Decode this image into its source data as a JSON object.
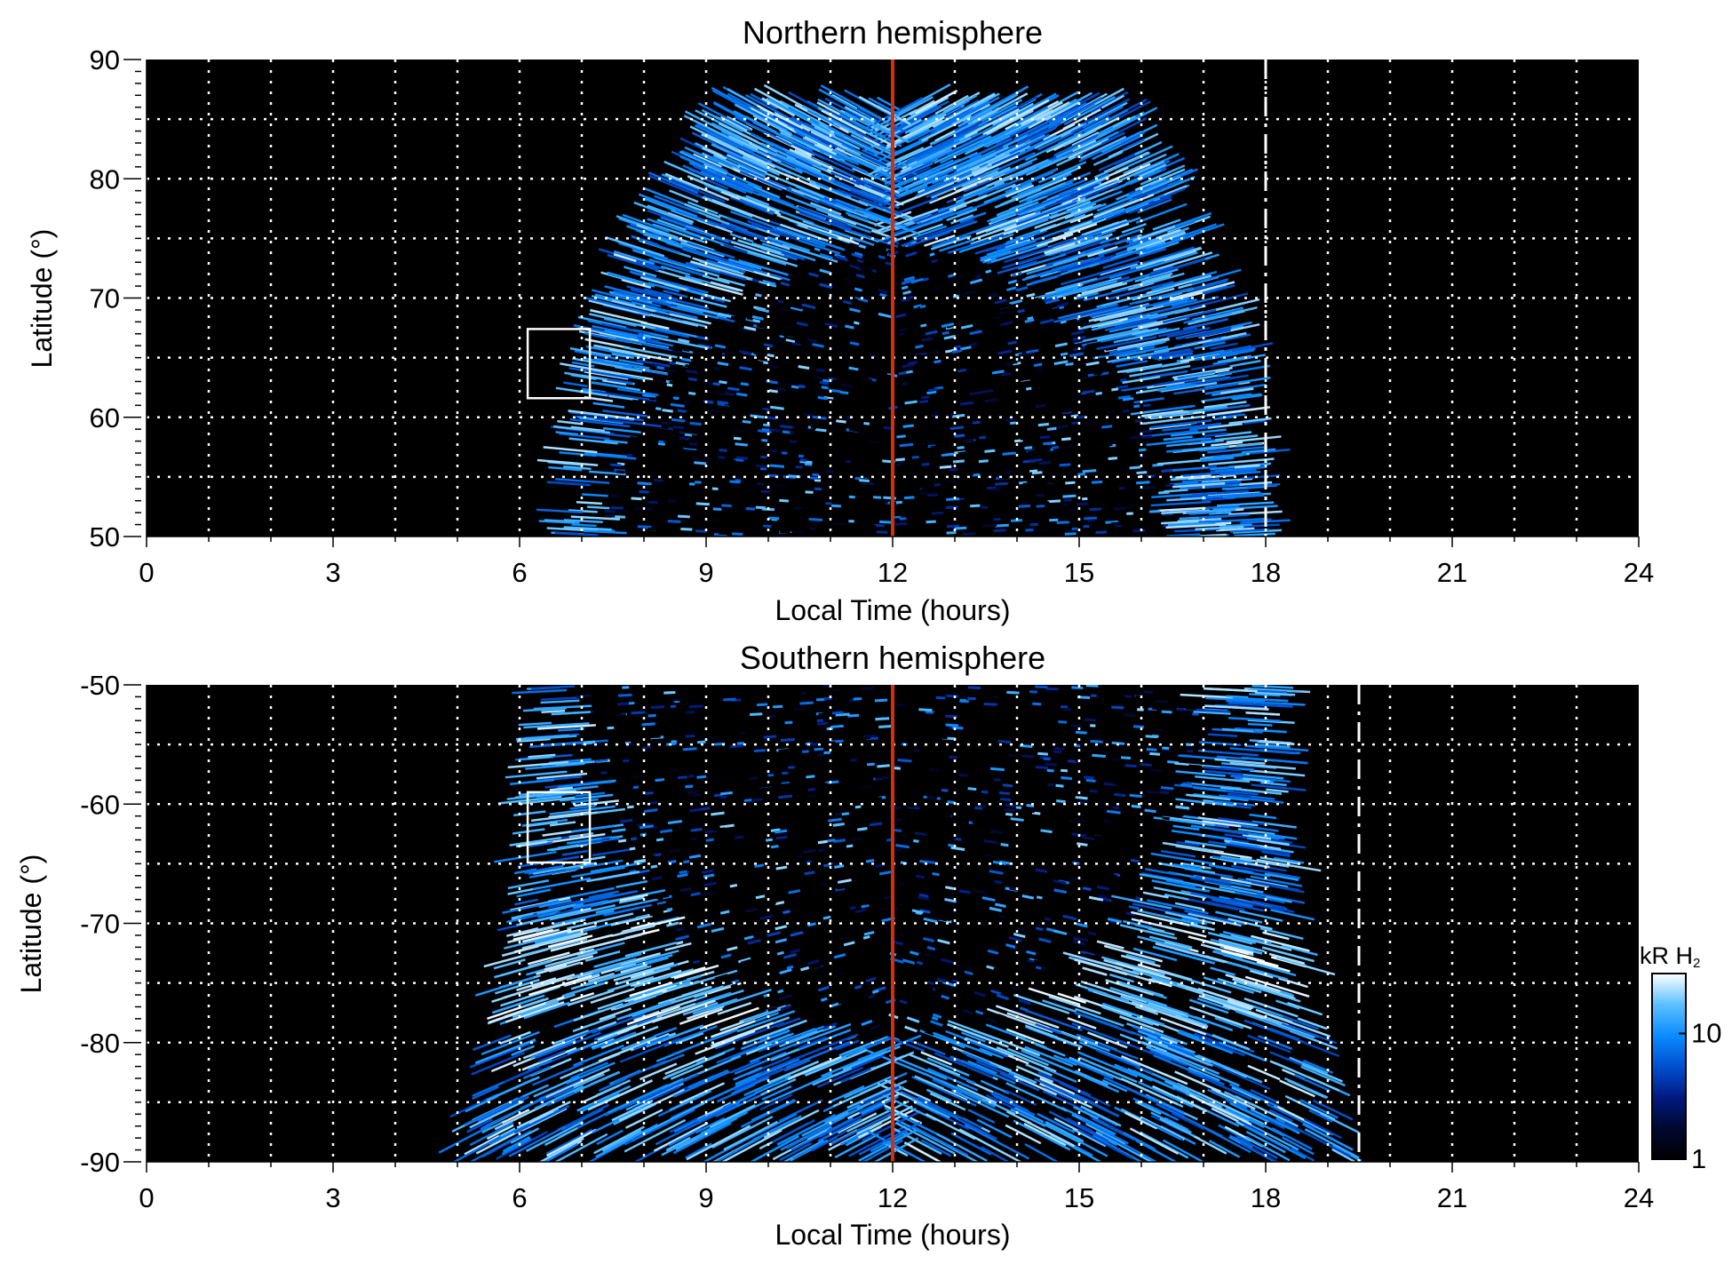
{
  "chart_data": [
    {
      "type": "heatmap",
      "title": "Northern hemisphere",
      "xlabel": "Local Time (hours)",
      "ylabel": "Latitude (°)",
      "xlim": [
        0,
        24
      ],
      "ylim": [
        50,
        90
      ],
      "xticks": [
        "0",
        "3",
        "6",
        "9",
        "12",
        "15",
        "18",
        "21",
        "24"
      ],
      "yticks": [
        "50",
        "60",
        "70",
        "80",
        "90"
      ],
      "grid": true,
      "emission": {
        "lat_edge": 50,
        "lat_pole": 86.5,
        "lt_start_edge": 6.6,
        "lt_end_edge": 18.0,
        "lt_start_pole": 9.5,
        "lt_end_pole": 15.6,
        "dark_core_lt_halfwidth": 4.6,
        "dark_core_lat_extent": 25
      },
      "annotations": {
        "noon_line_lt": 12,
        "noon_line_color": "#d03010",
        "dashed_line_lt": 18,
        "box": {
          "lt": [
            6.13,
            7.13
          ],
          "lat": [
            61.6,
            67.4
          ]
        }
      }
    },
    {
      "type": "heatmap",
      "title": "Southern hemisphere",
      "xlabel": "Local Time (hours)",
      "ylabel": "Latitude (°)",
      "xlim": [
        0,
        24
      ],
      "ylim": [
        -90,
        -50
      ],
      "xticks": [
        "0",
        "3",
        "6",
        "9",
        "12",
        "15",
        "18",
        "21",
        "24"
      ],
      "yticks": [
        "-90",
        "-80",
        "-70",
        "-60",
        "-50"
      ],
      "grid": true,
      "emission": {
        "lat_edge": -50,
        "lat_pole": -89.5,
        "lt_start_edge": 6.2,
        "lt_end_edge": 18.3,
        "lt_start_pole": 5.0,
        "lt_end_pole": 19.4,
        "dark_core_lt_halfwidth": 5.0,
        "dark_core_lat_extent": 30
      },
      "annotations": {
        "noon_line_lt": 12,
        "noon_line_color": "#d03010",
        "dashed_line_lt": 19.5,
        "box": {
          "lt": [
            6.13,
            7.13
          ],
          "lat": [
            -64.9,
            -59.0
          ]
        }
      }
    }
  ],
  "colorbar": {
    "label_main": "kR H",
    "label_sub": "2",
    "ticks": [
      "1",
      "10"
    ],
    "range": [
      1,
      30
    ],
    "scale": "log",
    "colors": [
      "#000000",
      "#000830",
      "#001a80",
      "#0050d0",
      "#0a8cff",
      "#5cc0ff",
      "#ffffff"
    ]
  }
}
